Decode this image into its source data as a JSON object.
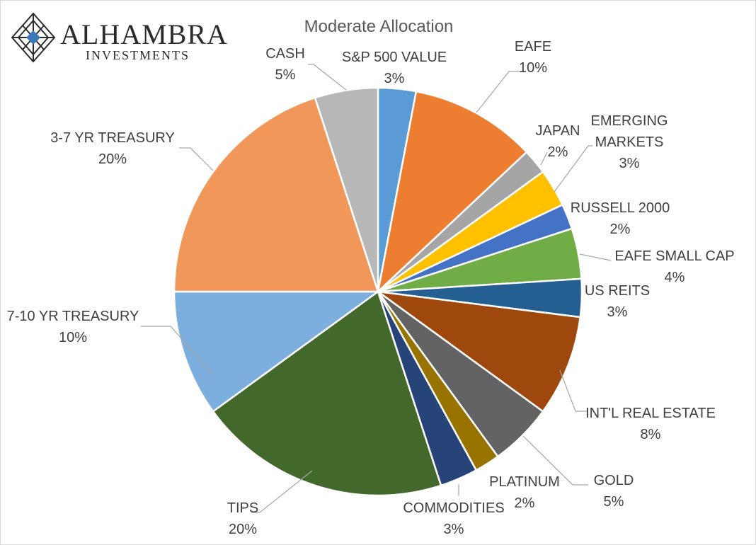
{
  "logo": {
    "icon": "alhambra-lattice-diamond-icon",
    "word": "ALHAMBRA",
    "sub": "INVESTMENTS",
    "accent_color": "#3a78b8"
  },
  "chart_data": {
    "type": "pie",
    "title": "Moderate Allocation",
    "start_angle_deg": 0,
    "direction": "clockwise",
    "slices": [
      {
        "label": "S&P 500 VALUE",
        "value": 3,
        "pct_label": "3%",
        "color": "#5b9bd5"
      },
      {
        "label": "EAFE",
        "value": 10,
        "pct_label": "10%",
        "color": "#ed7d31"
      },
      {
        "label": "JAPAN",
        "value": 2,
        "pct_label": "2%",
        "color": "#a5a5a5"
      },
      {
        "label": "EMERGING MARKETS",
        "value": 3,
        "pct_label": "3%",
        "color": "#ffc000"
      },
      {
        "label": "RUSSELL 2000",
        "value": 2,
        "pct_label": "2%",
        "color": "#4472c4"
      },
      {
        "label": "EAFE SMALL CAP",
        "value": 4,
        "pct_label": "4%",
        "color": "#70ad47"
      },
      {
        "label": "US REITS",
        "value": 3,
        "pct_label": "3%",
        "color": "#255e91"
      },
      {
        "label": "INT'L REAL ESTATE",
        "value": 8,
        "pct_label": "8%",
        "color": "#9e480e"
      },
      {
        "label": "GOLD",
        "value": 5,
        "pct_label": "5%",
        "color": "#636363"
      },
      {
        "label": "PLATINUM",
        "value": 2,
        "pct_label": "2%",
        "color": "#997300"
      },
      {
        "label": "COMMODITIES",
        "value": 3,
        "pct_label": "3%",
        "color": "#264478"
      },
      {
        "label": "TIPS",
        "value": 20,
        "pct_label": "20%",
        "color": "#43682b"
      },
      {
        "label": "7-10 YR TREASURY",
        "value": 10,
        "pct_label": "10%",
        "color": "#7cafdd"
      },
      {
        "label": "3-7 YR TREASURY",
        "value": 20,
        "pct_label": "20%",
        "color": "#f1975a"
      },
      {
        "label": "CASH",
        "value": 5,
        "pct_label": "5%",
        "color": "#b7b7b7"
      }
    ]
  }
}
